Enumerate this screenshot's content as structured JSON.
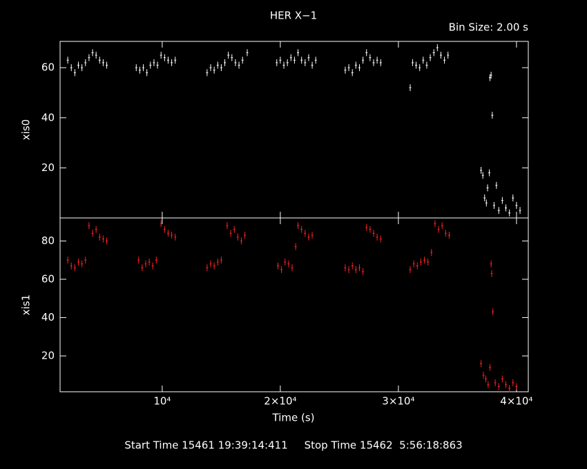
{
  "chart_data": [
    {
      "type": "scatter",
      "title": "HER X−1",
      "subtitle": "Bin Size: 2.00 s",
      "ylabel": "xis0",
      "color": "#ffffff",
      "xlim": [
        1350,
        41000
      ],
      "ylim": [
        0,
        70.5
      ],
      "xticks": [
        10000,
        20000,
        30000,
        40000
      ],
      "yticks": [
        20,
        40,
        60
      ],
      "x": [
        2000,
        2300,
        2600,
        2900,
        3200,
        3500,
        3800,
        4100,
        4400,
        4700,
        5000,
        5300,
        7800,
        8100,
        8400,
        8700,
        9000,
        9300,
        9600,
        9900,
        10200,
        10500,
        10800,
        11100,
        13800,
        14100,
        14400,
        14700,
        15000,
        15300,
        15600,
        15900,
        16200,
        16500,
        16800,
        17200,
        19700,
        20000,
        20300,
        20600,
        20900,
        21200,
        21500,
        21800,
        22100,
        22400,
        22700,
        23000,
        25500,
        25800,
        26100,
        26400,
        26700,
        27000,
        27300,
        27600,
        27900,
        28200,
        28500,
        31000,
        31200,
        31500,
        31800,
        32100,
        32400,
        32700,
        33000,
        33300,
        33600,
        33900,
        34200,
        37000,
        37150,
        37300,
        37450,
        37550,
        37700,
        37750,
        37850,
        37950,
        38100,
        38300,
        38500,
        38800,
        39100,
        39400,
        39700,
        40000,
        40300
      ],
      "values": [
        63,
        60,
        58,
        61,
        60,
        62,
        64,
        66,
        65,
        63,
        62,
        61,
        60,
        59,
        60,
        58,
        61,
        62,
        61,
        65,
        64,
        63,
        62,
        63,
        58,
        60,
        59,
        61,
        60,
        62,
        65,
        64,
        62,
        61,
        63,
        66,
        62,
        63,
        61,
        62,
        64,
        63,
        66,
        63,
        62,
        64,
        61,
        63,
        59,
        60,
        58,
        61,
        60,
        63,
        66,
        64,
        62,
        63,
        62,
        52,
        62,
        61,
        60,
        63,
        61,
        64,
        66,
        68,
        65,
        63,
        65,
        19,
        17,
        8,
        6,
        12,
        18,
        56,
        57,
        41,
        5,
        13,
        3,
        7,
        4,
        2,
        8,
        5,
        3
      ]
    },
    {
      "type": "scatter",
      "ylabel": "xis1",
      "xlabel": "Time (s)",
      "color": "#ff2020",
      "annotation": "Start Time 15461 19:39:14:411     Stop Time 15462  5:56:18:863",
      "xlim": [
        1350,
        41000
      ],
      "ylim": [
        1.3,
        92
      ],
      "xticks": [
        {
          "value": 10000,
          "label": "10⁴"
        },
        {
          "value": 20000,
          "label": "2×10⁴"
        },
        {
          "value": 30000,
          "label": "3×10⁴"
        },
        {
          "value": 40000,
          "label": "4×10⁴"
        }
      ],
      "yticks": [
        20,
        40,
        60,
        80
      ],
      "x": [
        2000,
        2300,
        2600,
        2900,
        3200,
        3500,
        3800,
        4100,
        4400,
        4700,
        5000,
        5300,
        8000,
        8300,
        8600,
        8900,
        9200,
        9500,
        9900,
        10200,
        10500,
        10800,
        11100,
        13800,
        14100,
        14400,
        14700,
        15000,
        15500,
        15800,
        16100,
        16400,
        16700,
        17000,
        19800,
        20100,
        20400,
        20700,
        21000,
        21300,
        21500,
        21800,
        22100,
        22400,
        22700,
        25500,
        25800,
        26100,
        26400,
        26700,
        27000,
        27300,
        27600,
        27900,
        28200,
        28500,
        31000,
        31300,
        31600,
        31900,
        32200,
        32500,
        32800,
        33100,
        33400,
        33700,
        34000,
        34300,
        37000,
        37200,
        37400,
        37600,
        37750,
        37850,
        37900,
        38000,
        38200,
        38500,
        38800,
        39100,
        39400,
        39700,
        40000
      ],
      "values": [
        70,
        67,
        66,
        69,
        68,
        70,
        88,
        84,
        86,
        82,
        81,
        80,
        70,
        66,
        68,
        69,
        67,
        70,
        89,
        86,
        84,
        83,
        82,
        66,
        68,
        67,
        69,
        70,
        88,
        84,
        86,
        82,
        80,
        83,
        67,
        65,
        69,
        68,
        66,
        77,
        88,
        86,
        84,
        82,
        83,
        66,
        65,
        67,
        65,
        66,
        64,
        87,
        86,
        84,
        82,
        81,
        65,
        68,
        67,
        69,
        70,
        69,
        74,
        89,
        86,
        88,
        84,
        83,
        16,
        10,
        8,
        5,
        14,
        68,
        63,
        43,
        6,
        4,
        8,
        5,
        3,
        6,
        4
      ]
    }
  ]
}
